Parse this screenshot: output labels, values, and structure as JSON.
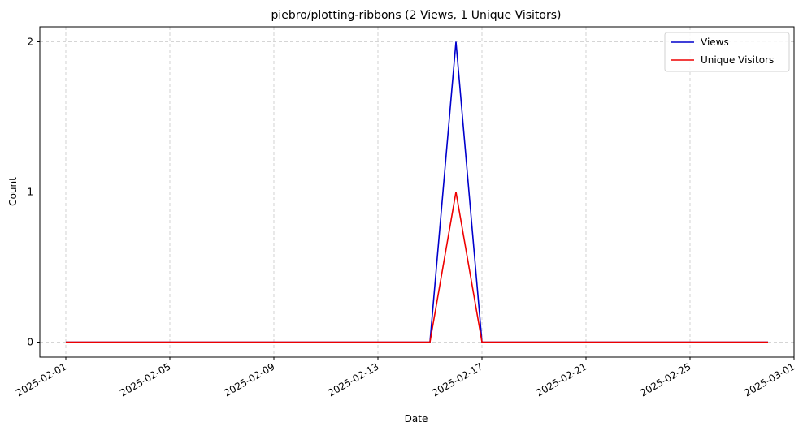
{
  "chart_data": {
    "type": "line",
    "title": "piebro/plotting-ribbons (2 Views, 1 Unique Visitors)",
    "xlabel": "Date",
    "ylabel": "Count",
    "x": [
      "2025-02-01",
      "2025-02-02",
      "2025-02-03",
      "2025-02-04",
      "2025-02-05",
      "2025-02-06",
      "2025-02-07",
      "2025-02-08",
      "2025-02-09",
      "2025-02-10",
      "2025-02-11",
      "2025-02-12",
      "2025-02-13",
      "2025-02-14",
      "2025-02-15",
      "2025-02-16",
      "2025-02-17",
      "2025-02-18",
      "2025-02-19",
      "2025-02-20",
      "2025-02-21",
      "2025-02-22",
      "2025-02-23",
      "2025-02-24",
      "2025-02-25",
      "2025-02-26",
      "2025-02-27",
      "2025-02-28"
    ],
    "series": [
      {
        "name": "Views",
        "color": "#0000cc",
        "values": [
          0,
          0,
          0,
          0,
          0,
          0,
          0,
          0,
          0,
          0,
          0,
          0,
          0,
          0,
          0,
          2,
          0,
          0,
          0,
          0,
          0,
          0,
          0,
          0,
          0,
          0,
          0,
          0
        ]
      },
      {
        "name": "Unique Visitors",
        "color": "#ee0000",
        "values": [
          0,
          0,
          0,
          0,
          0,
          0,
          0,
          0,
          0,
          0,
          0,
          0,
          0,
          0,
          0,
          1,
          0,
          0,
          0,
          0,
          0,
          0,
          0,
          0,
          0,
          0,
          0,
          0
        ]
      }
    ],
    "xlim": [
      "2025-01-31",
      "2025-03-01"
    ],
    "ylim": [
      -0.1,
      2.1
    ],
    "xticks": [
      "2025-02-01",
      "2025-02-05",
      "2025-02-09",
      "2025-02-13",
      "2025-02-17",
      "2025-02-21",
      "2025-02-25",
      "2025-03-01"
    ],
    "yticks": [
      0,
      1,
      2
    ],
    "grid": true,
    "legend": "top-right"
  }
}
